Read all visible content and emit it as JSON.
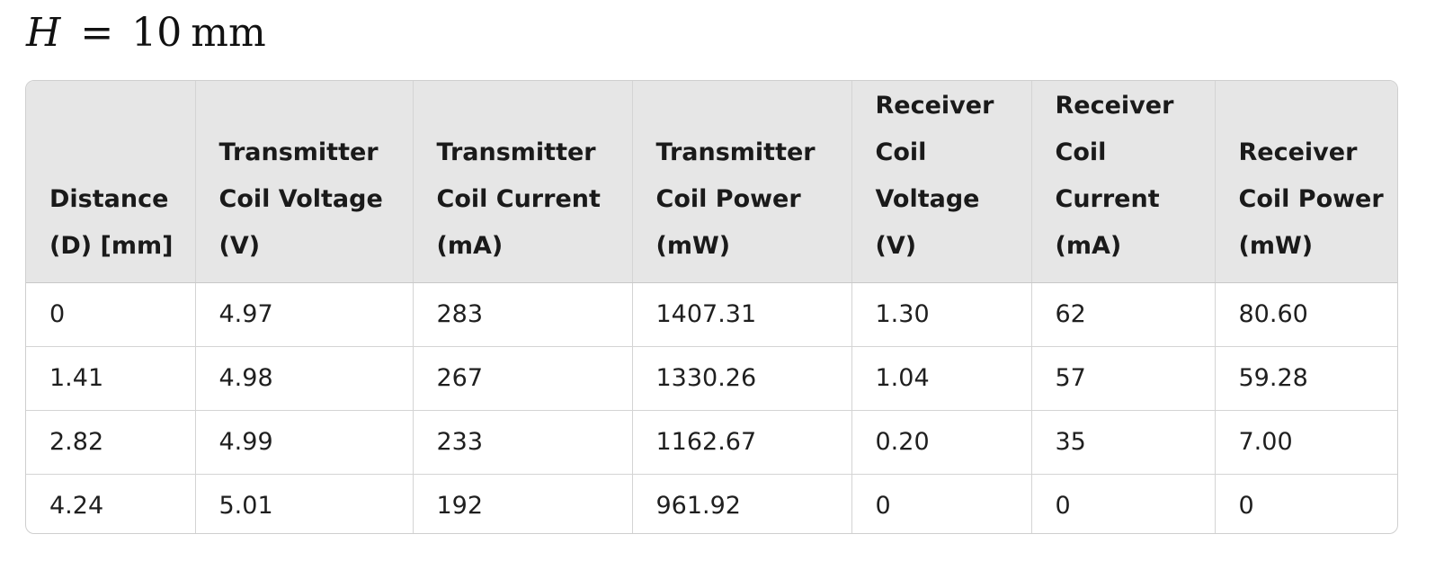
{
  "heading": {
    "variable": "H",
    "equals": "=",
    "value": "10",
    "unit": "mm"
  },
  "table": {
    "columns": [
      [
        "Distance",
        "(D) [mm]"
      ],
      [
        "Transmitter",
        "Coil Voltage",
        "(V)"
      ],
      [
        "Transmitter",
        "Coil Current",
        "(mA)"
      ],
      [
        "Transmitter",
        "Coil Power",
        "(mW)"
      ],
      [
        "Receiver",
        "Coil",
        "Voltage",
        "(V)"
      ],
      [
        "Receiver",
        "Coil",
        "Current",
        "(mA)"
      ],
      [
        "Receiver",
        "Coil Power",
        "(mW)"
      ]
    ],
    "rows": [
      [
        "0",
        "4.97",
        "283",
        "1407.31",
        "1.30",
        "62",
        "80.60"
      ],
      [
        "1.41",
        "4.98",
        "267",
        "1330.26",
        "1.04",
        "57",
        "59.28"
      ],
      [
        "2.82",
        "4.99",
        "233",
        "1162.67",
        "0.20",
        "35",
        "7.00"
      ],
      [
        "4.24",
        "5.01",
        "192",
        "961.92",
        "0",
        "0",
        "0"
      ]
    ]
  }
}
